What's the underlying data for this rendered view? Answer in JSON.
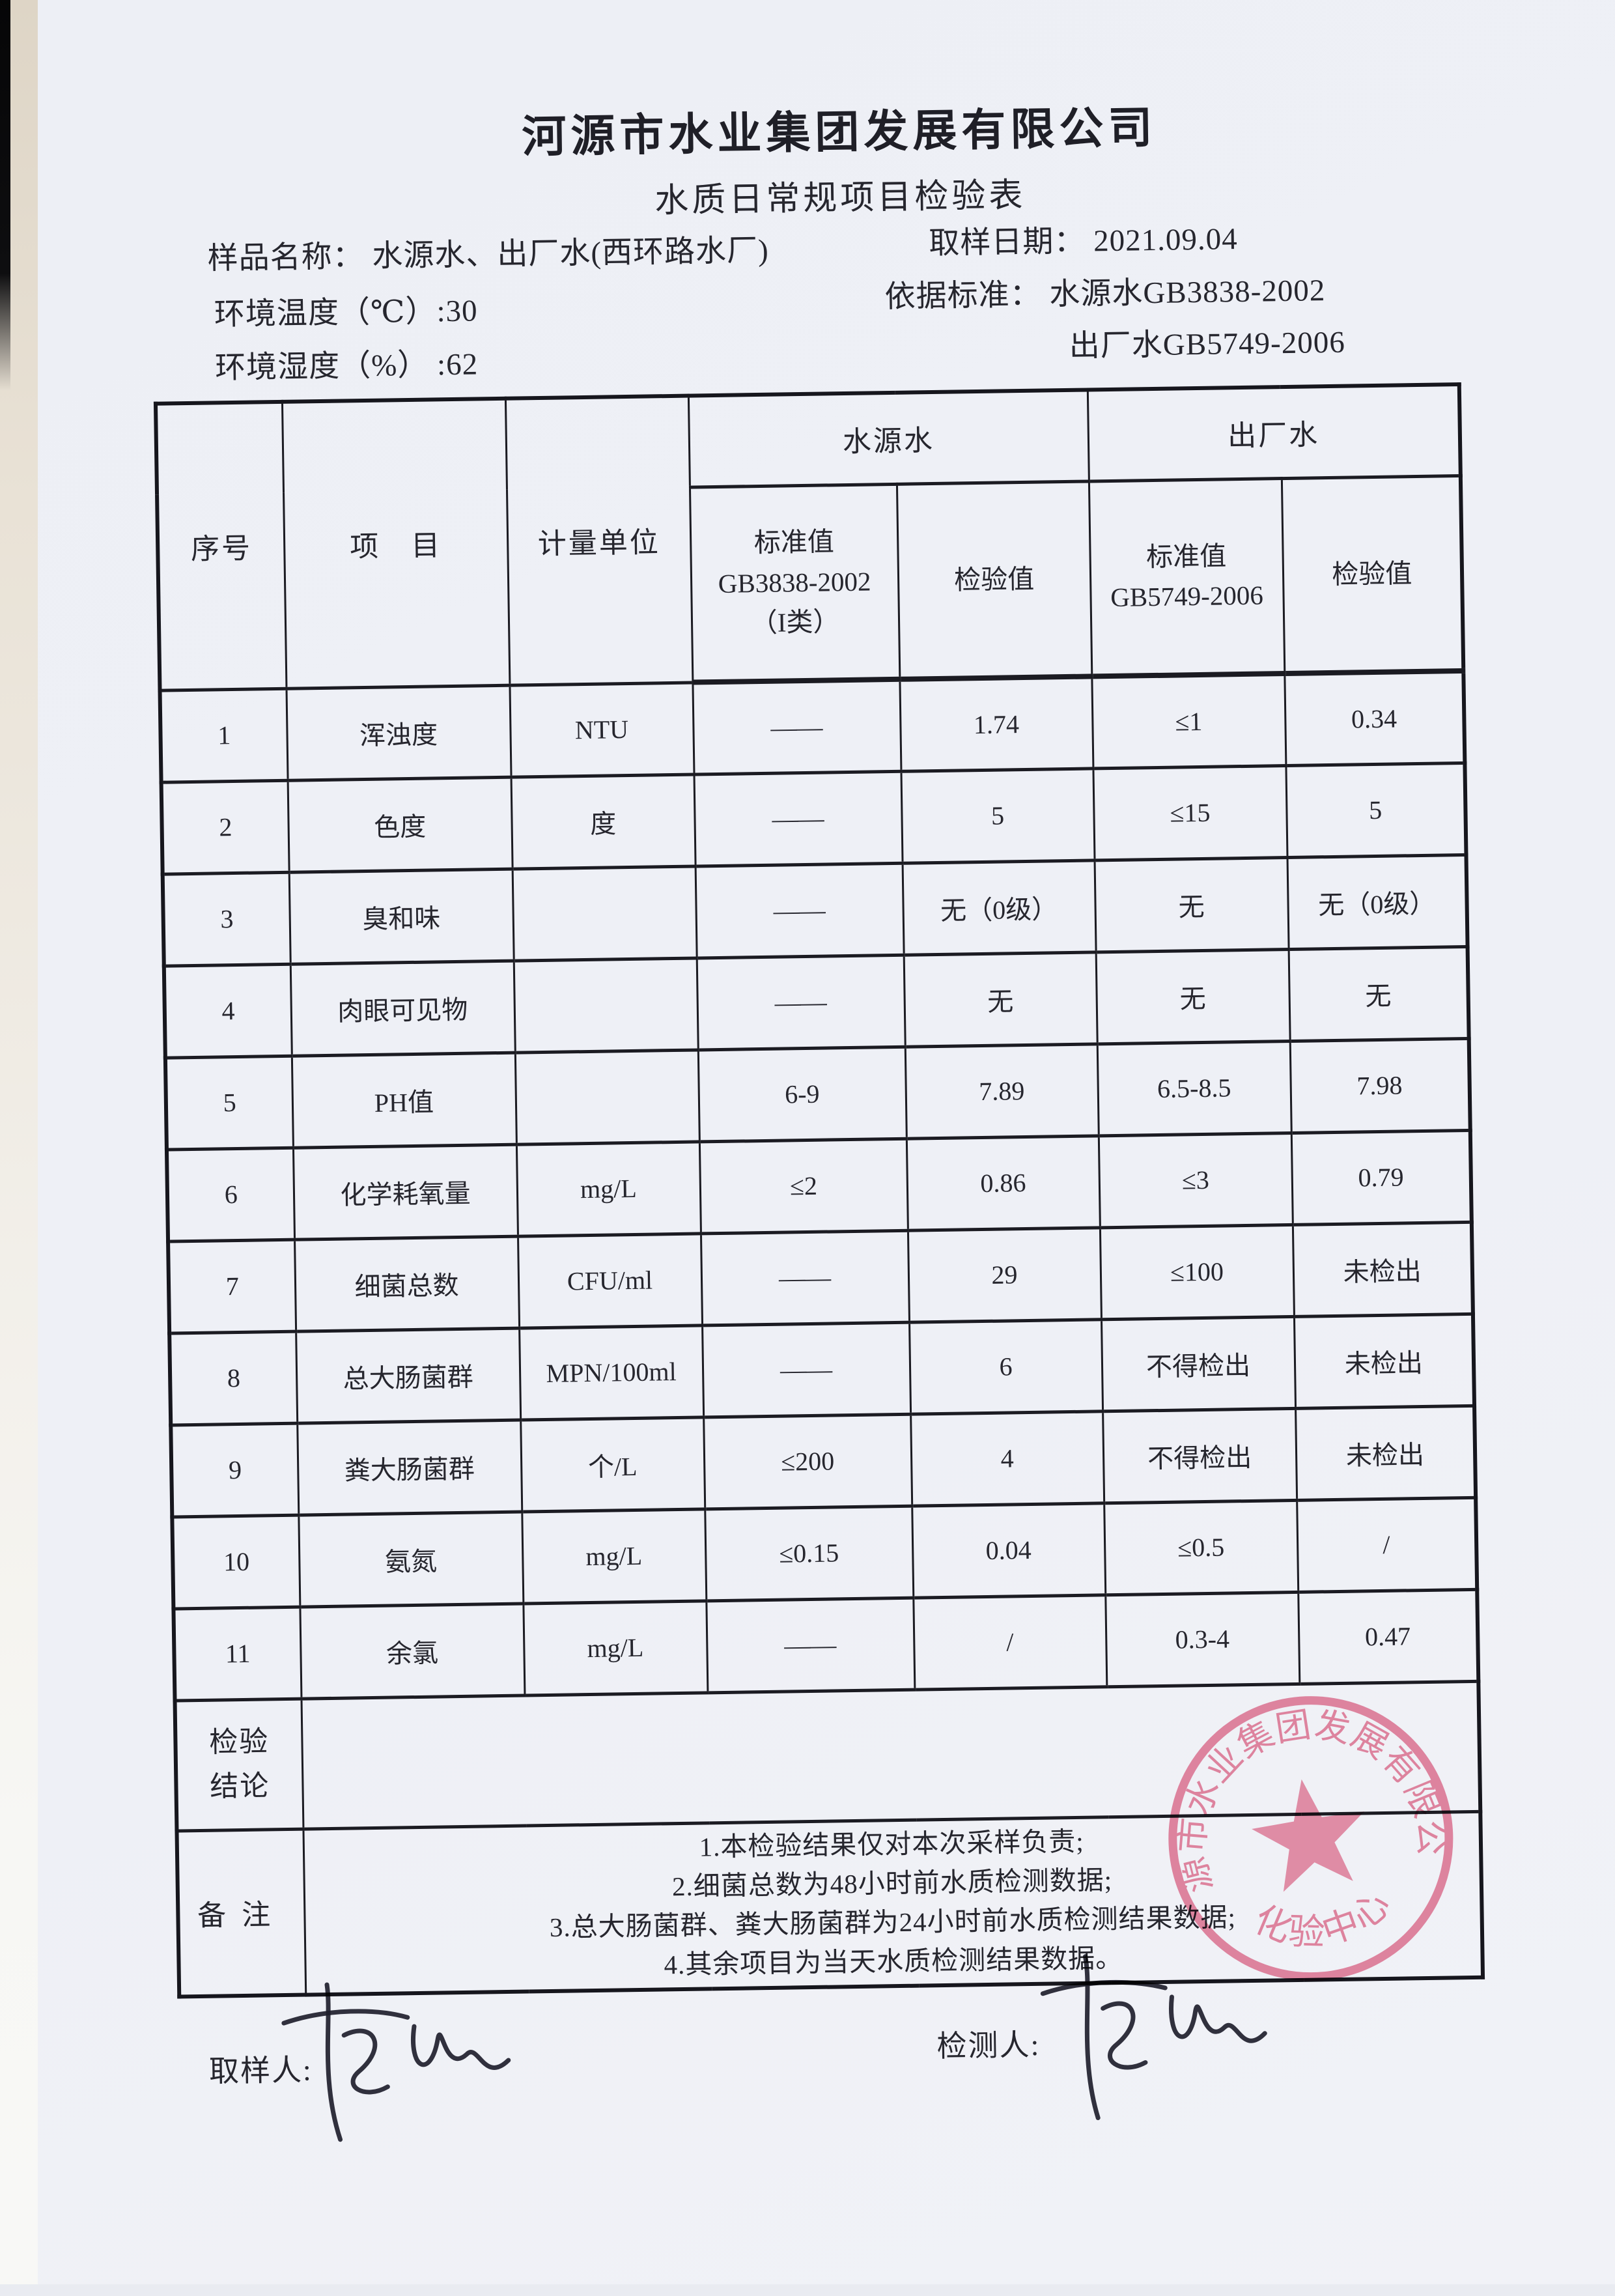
{
  "doc": {
    "company": "河源市水业集团发展有限公司",
    "title": "水质日常规项目检验表"
  },
  "meta": {
    "sample_name": "样品名称： 水源水、出厂水(西环路水厂)",
    "sampling_date": "取样日期： 2021.09.04",
    "env_temperature": "环境温度（℃）:30",
    "standard_basis": "依据标准： 水源水GB3838-2002",
    "env_humidity": "环境湿度（%）  :62",
    "standard_tap": "出厂水GB5749-2006"
  },
  "table": {
    "headers": {
      "no": "序号",
      "item": "项　目",
      "unit": "计量单位",
      "group_source": "水源水",
      "group_tap": "出厂水",
      "std_source_l1": "标准值",
      "std_source_l2": "GB3838-2002",
      "std_source_l3": "（I类）",
      "val_source": "检验值",
      "std_tap_l1": "标准值",
      "std_tap_l2": "GB5749-2006",
      "val_tap": "检验值"
    },
    "rows": [
      {
        "no": "1",
        "item": "浑浊度",
        "unit": "NTU",
        "std1": "——",
        "val1": "1.74",
        "std2": "≤1",
        "val2": "0.34"
      },
      {
        "no": "2",
        "item": "色度",
        "unit": "度",
        "std1": "——",
        "val1": "5",
        "std2": "≤15",
        "val2": "5"
      },
      {
        "no": "3",
        "item": "臭和味",
        "unit": "",
        "std1": "——",
        "val1": "无（0级）",
        "std2": "无",
        "val2": "无（0级）"
      },
      {
        "no": "4",
        "item": "肉眼可见物",
        "unit": "",
        "std1": "——",
        "val1": "无",
        "std2": "无",
        "val2": "无"
      },
      {
        "no": "5",
        "item": "PH值",
        "unit": "",
        "std1": "6-9",
        "val1": "7.89",
        "std2": "6.5-8.5",
        "val2": "7.98"
      },
      {
        "no": "6",
        "item": "化学耗氧量",
        "unit": "mg/L",
        "std1": "≤2",
        "val1": "0.86",
        "std2": "≤3",
        "val2": "0.79"
      },
      {
        "no": "7",
        "item": "细菌总数",
        "unit": "CFU/ml",
        "std1": "——",
        "val1": "29",
        "std2": "≤100",
        "val2": "未检出"
      },
      {
        "no": "8",
        "item": "总大肠菌群",
        "unit": "MPN/100ml",
        "std1": "——",
        "val1": "6",
        "std2": "不得检出",
        "val2": "未检出"
      },
      {
        "no": "9",
        "item": "粪大肠菌群",
        "unit": "个/L",
        "std1": "≤200",
        "val1": "4",
        "std2": "不得检出",
        "val2": "未检出"
      },
      {
        "no": "10",
        "item": "氨氮",
        "unit": "mg/L",
        "std1": "≤0.15",
        "val1": "0.04",
        "std2": "≤0.5",
        "val2": "/"
      },
      {
        "no": "11",
        "item": "余氯",
        "unit": "mg/L",
        "std1": "——",
        "val1": "/",
        "std2": "0.3-4",
        "val2": "0.47"
      }
    ],
    "conclusion_label_line1": "检验",
    "conclusion_label_line2": "结论",
    "conclusion_value": "",
    "notes_label": "备注",
    "notes": [
      "1.本检验结果仅对本次采样负责;",
      "2.细菌总数为48小时前水质检测数据;",
      "3.总大肠菌群、粪大肠菌群为24小时前水质检测结果数据;",
      "4.其余项目为当天水质检测结果数据。"
    ]
  },
  "footer": {
    "sampler_label": "取样人:",
    "tester_label": "检测人:"
  },
  "stamp": {
    "ring_text": "河源市水业集团发展有限公司",
    "center_text": "化验中心"
  },
  "colors": {
    "paper": "#eef0f6",
    "ink": "#26262e",
    "table_line": "#1b1b22",
    "stamp": "#d96e8d"
  }
}
